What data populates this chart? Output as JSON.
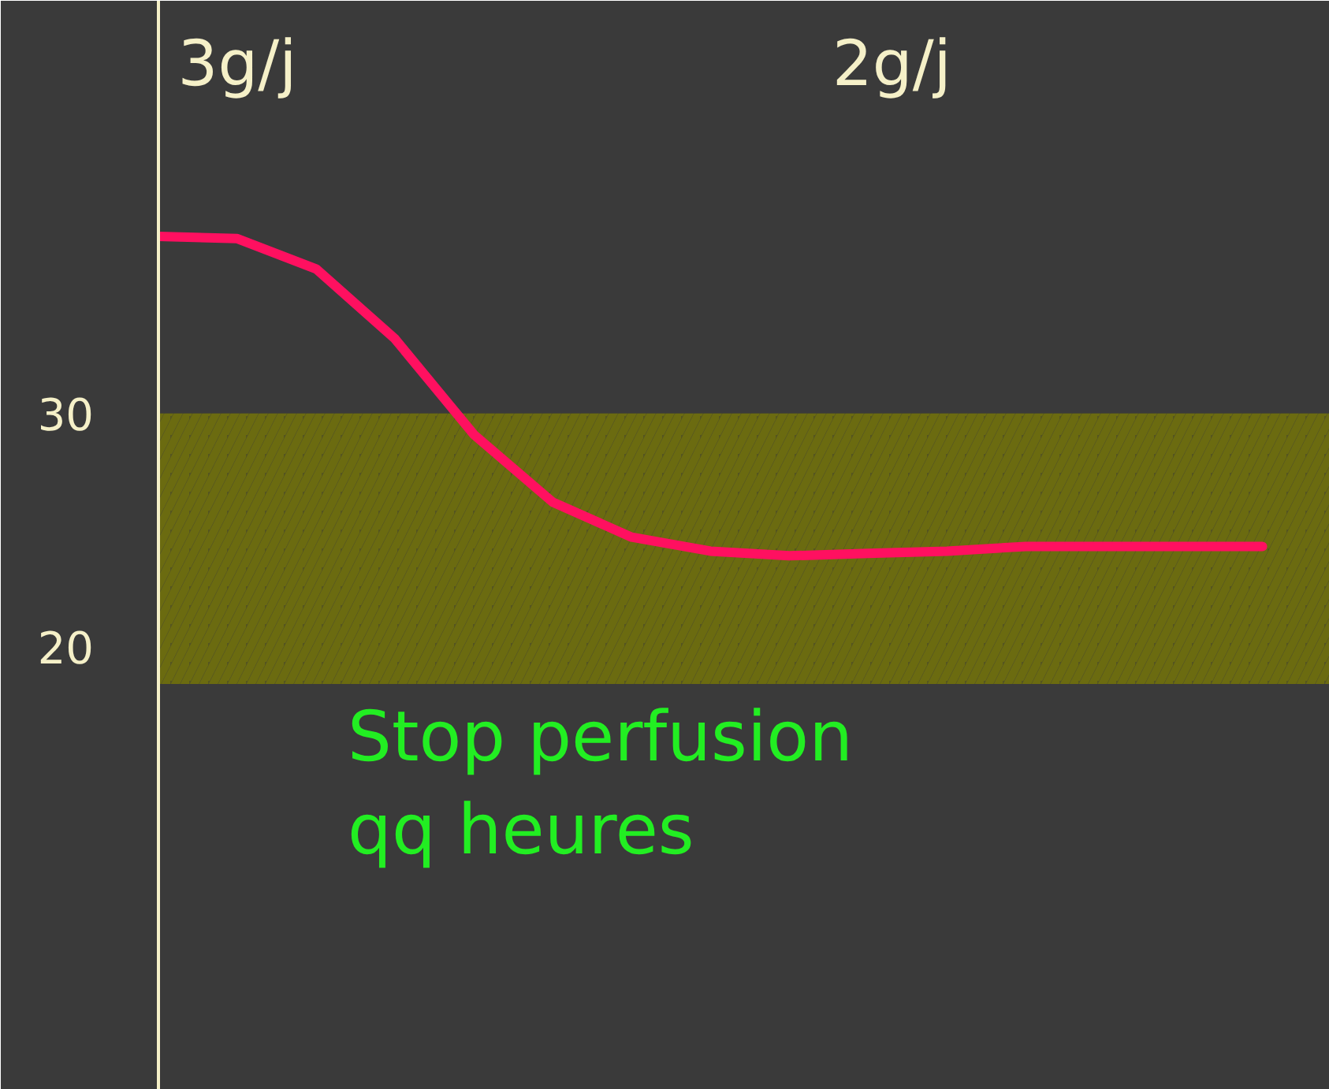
{
  "chart_data": {
    "type": "line",
    "categories": [
      null,
      null,
      null,
      null,
      null,
      null,
      null,
      null,
      null,
      null,
      null,
      null,
      null,
      null,
      null
    ],
    "series": [
      {
        "color": "#ff1060",
        "values": [
          37.6,
          37.5,
          36.2,
          33.2,
          29.1,
          26.2,
          24.7,
          24.1,
          23.9,
          24.0,
          24.1,
          24.3,
          24.3,
          24.3,
          24.3
        ]
      }
    ],
    "ylim": [
      1,
      47.7
    ],
    "yticks": [
      20,
      30
    ],
    "marker": "none",
    "line_style": "solid",
    "bands": [
      {
        "axis": "y",
        "from": 18.4,
        "to": 30,
        "color": "#6b6b10"
      }
    ],
    "annotations": [
      "3g/j",
      "2g/j",
      "Stop perfusion\nqq heures"
    ]
  }
}
